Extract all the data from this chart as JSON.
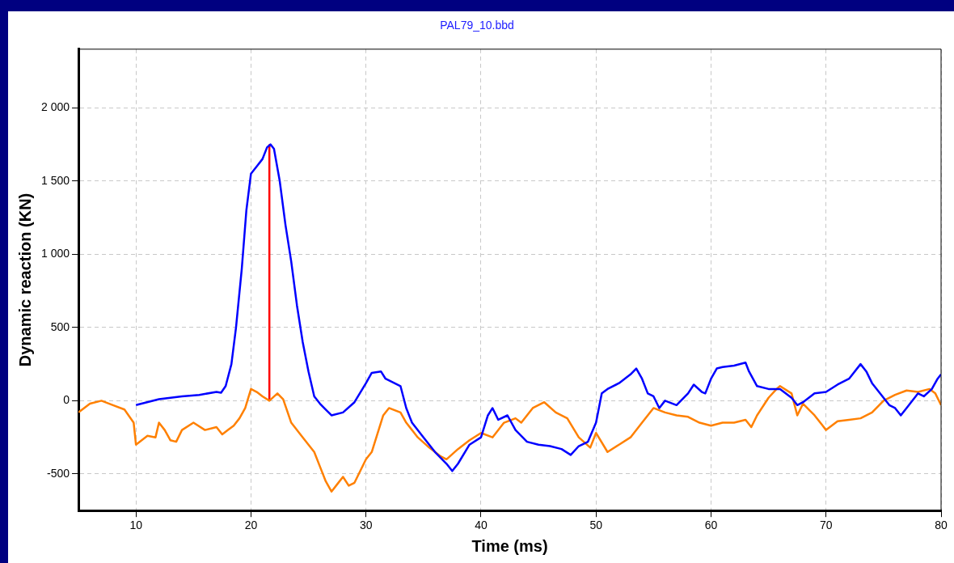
{
  "chart_data": {
    "type": "line",
    "title": "PAL79_10.bbd",
    "xlabel": "Time (ms)",
    "ylabel": "Dynamic reaction (KN)",
    "xlim": [
      5,
      80
    ],
    "ylim": [
      -750,
      2400
    ],
    "xticks": [
      10,
      20,
      30,
      40,
      50,
      60,
      70,
      80
    ],
    "yticks": [
      -500,
      0,
      500,
      {
        "value": 1000,
        "label": "1 000"
      },
      {
        "value": 1500,
        "label": "1 500"
      },
      {
        "value": 2000,
        "label": "2 000"
      }
    ],
    "grid": true,
    "legend": false,
    "marker": "none",
    "line_style": "solid",
    "series": [
      {
        "color": "#0000ff",
        "x": [
          10,
          12,
          14,
          15.5,
          17,
          17.4,
          17.8,
          18.3,
          18.7,
          19.2,
          19.6,
          20,
          20.5,
          21,
          21.4,
          21.7,
          22,
          22.5,
          23,
          23.5,
          24,
          24.5,
          25,
          25.5,
          26,
          26.5,
          27,
          28,
          29,
          30,
          30.5,
          31.3,
          31.7,
          33,
          33.5,
          34,
          35,
          36,
          37,
          37.5,
          38,
          39,
          40,
          40.6,
          41,
          41.5,
          42.3,
          43,
          44,
          45,
          46,
          47,
          47.8,
          48.5,
          49.3,
          50,
          50.5,
          51,
          52,
          53,
          53.5,
          54,
          54.5,
          55,
          55.5,
          56,
          57,
          58,
          58.5,
          59.2,
          59.5,
          60,
          60.5,
          61,
          62,
          63,
          63.3,
          64,
          65,
          66,
          67,
          67.5,
          68,
          69,
          70,
          71,
          72,
          73,
          73.5,
          74,
          75,
          75.5,
          76,
          76.5,
          77,
          78,
          78.5,
          79.2,
          79.7,
          80
        ],
        "values": [
          -30,
          10,
          30,
          40,
          60,
          55,
          100,
          250,
          500,
          900,
          1300,
          1550,
          1600,
          1650,
          1730,
          1750,
          1720,
          1500,
          1200,
          950,
          650,
          400,
          200,
          30,
          -20,
          -60,
          -100,
          -80,
          -10,
          120,
          190,
          200,
          150,
          100,
          -50,
          -150,
          -250,
          -350,
          -430,
          -480,
          -430,
          -300,
          -250,
          -100,
          -50,
          -130,
          -100,
          -200,
          -280,
          -300,
          -310,
          -330,
          -370,
          -310,
          -280,
          -150,
          50,
          80,
          120,
          180,
          220,
          150,
          50,
          30,
          -50,
          0,
          -30,
          50,
          110,
          60,
          50,
          150,
          220,
          230,
          240,
          260,
          200,
          100,
          80,
          80,
          20,
          -30,
          -10,
          50,
          60,
          110,
          150,
          250,
          200,
          120,
          20,
          -30,
          -50,
          -100,
          -50,
          50,
          30,
          80,
          150,
          180
        ]
      },
      {
        "color": "#ff8000",
        "x": [
          5,
          6,
          7,
          8,
          9,
          9.8,
          10,
          11,
          11.7,
          12,
          12.5,
          13,
          13.5,
          14,
          15,
          16,
          17,
          17.5,
          18,
          18.5,
          19,
          19.5,
          20,
          20.5,
          21,
          21.6,
          22.3,
          22.8,
          23.5,
          24.5,
          25.5,
          26,
          26.5,
          27,
          27.5,
          28,
          28.5,
          29,
          29.5,
          30,
          30.5,
          31.5,
          32,
          33,
          33.5,
          34.5,
          35.5,
          36.5,
          37,
          38,
          39,
          40,
          41,
          42,
          43,
          43.5,
          44.5,
          45.5,
          46.5,
          47.5,
          48.5,
          49.5,
          50,
          51,
          52,
          53,
          54,
          55,
          56,
          57,
          58,
          59,
          60,
          61,
          62,
          63,
          63.5,
          64,
          65,
          65.7,
          66,
          67,
          67.5,
          68,
          69,
          70,
          71,
          72,
          73,
          74,
          75,
          76,
          77,
          78,
          79,
          79.5,
          80
        ],
        "values": [
          -80,
          -20,
          0,
          -30,
          -60,
          -150,
          -300,
          -240,
          -250,
          -150,
          -200,
          -270,
          -280,
          -200,
          -150,
          -200,
          -180,
          -230,
          -200,
          -170,
          -120,
          -50,
          80,
          60,
          30,
          0,
          50,
          10,
          -150,
          -250,
          -350,
          -450,
          -550,
          -620,
          -570,
          -520,
          -580,
          -560,
          -480,
          -400,
          -350,
          -100,
          -50,
          -80,
          -150,
          -250,
          -320,
          -380,
          -400,
          -330,
          -270,
          -220,
          -250,
          -150,
          -120,
          -150,
          -50,
          -10,
          -80,
          -120,
          -250,
          -320,
          -220,
          -350,
          -300,
          -250,
          -150,
          -50,
          -80,
          -100,
          -110,
          -150,
          -170,
          -150,
          -150,
          -130,
          -180,
          -100,
          20,
          80,
          100,
          50,
          -100,
          -20,
          -100,
          -200,
          -140,
          -130,
          -120,
          -80,
          0,
          40,
          70,
          60,
          80,
          50,
          -30
        ]
      },
      {
        "color": "#ff0000",
        "x": [
          21.6,
          21.6
        ],
        "values": [
          0,
          1750
        ]
      }
    ]
  }
}
